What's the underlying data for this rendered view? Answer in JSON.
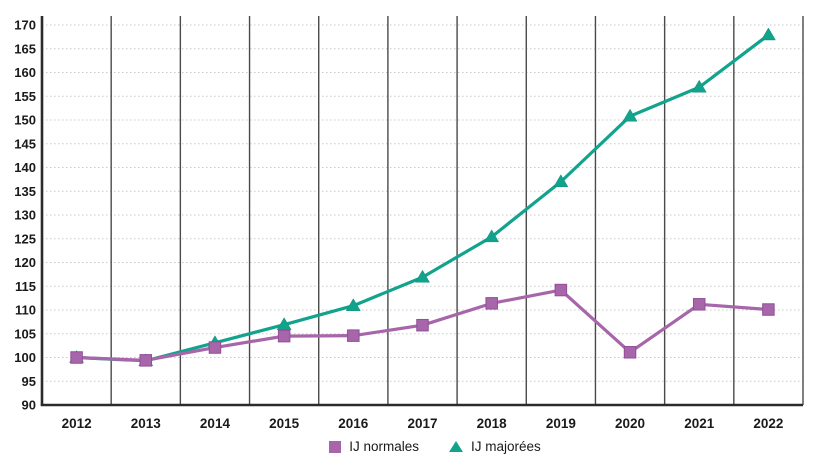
{
  "chart_data": {
    "type": "line",
    "title": "",
    "xlabel": "",
    "ylabel": "",
    "categories": [
      "2012",
      "2013",
      "2014",
      "2015",
      "2016",
      "2017",
      "2018",
      "2019",
      "2020",
      "2021",
      "2022"
    ],
    "series": [
      {
        "name": "IJ normales",
        "marker": "square",
        "color": "#a765aa",
        "marker_stroke": "#914f98",
        "values": [
          100,
          99.4,
          102.1,
          104.5,
          104.6,
          106.8,
          111.4,
          114.2,
          101.1,
          111.2,
          110.1
        ]
      },
      {
        "name": "IJ majorées",
        "marker": "triangle",
        "color": "#12a38c",
        "marker_stroke": "#0d8f7b",
        "values": [
          100,
          99.3,
          103.1,
          106.9,
          110.9,
          116.9,
          125.4,
          137.0,
          150.8,
          156.9,
          167.9
        ]
      }
    ],
    "ylim": [
      90,
      170
    ],
    "ytick_step": 5,
    "y_ticks": [
      90,
      95,
      100,
      105,
      110,
      115,
      120,
      125,
      130,
      135,
      140,
      145,
      150,
      155,
      160,
      165,
      170
    ],
    "grid": {
      "vertical": "solid",
      "horizontal": "dotted"
    },
    "legend_position": "bottom-center"
  },
  "colors": {
    "background": "#ffffff",
    "axis_line": "#2b2b2b",
    "vertical_grid": "#4a4a4a",
    "horizontal_grid": "#c9c9c9",
    "tick_label": "#1a1a1a",
    "legend_text": "#1a1a1a"
  }
}
